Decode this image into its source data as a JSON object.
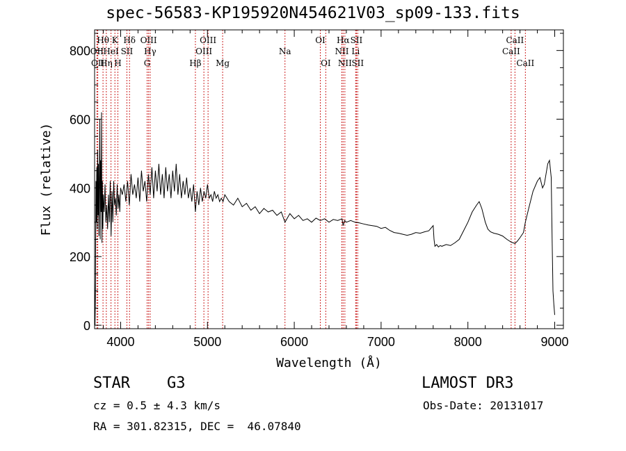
{
  "chart_data": {
    "type": "line",
    "title": "spec-56583-KP195920N454621V03_sp09-133.fits",
    "xlabel": "Wavelength (Å)",
    "ylabel": "Flux (relative)",
    "xlim": [
      3700,
      9100
    ],
    "ylim": [
      -10,
      860
    ],
    "xticks": [
      4000,
      5000,
      6000,
      7000,
      8000,
      9000
    ],
    "yticks": [
      0,
      200,
      400,
      600,
      800
    ],
    "series": [
      {
        "name": "spectrum",
        "x": [
          3700,
          3705,
          3710,
          3715,
          3720,
          3725,
          3730,
          3735,
          3740,
          3745,
          3750,
          3755,
          3760,
          3765,
          3770,
          3775,
          3780,
          3785,
          3790,
          3795,
          3800,
          3810,
          3820,
          3830,
          3840,
          3850,
          3860,
          3870,
          3880,
          3890,
          3900,
          3910,
          3920,
          3930,
          3940,
          3950,
          3960,
          3970,
          3980,
          3990,
          4000,
          4020,
          4040,
          4060,
          4080,
          4100,
          4120,
          4140,
          4160,
          4180,
          4200,
          4220,
          4240,
          4260,
          4280,
          4300,
          4320,
          4340,
          4360,
          4380,
          4400,
          4420,
          4440,
          4460,
          4480,
          4500,
          4520,
          4540,
          4560,
          4580,
          4600,
          4620,
          4640,
          4660,
          4680,
          4700,
          4720,
          4740,
          4760,
          4780,
          4800,
          4820,
          4840,
          4861,
          4880,
          4900,
          4920,
          4940,
          4960,
          4980,
          5000,
          5020,
          5040,
          5060,
          5080,
          5100,
          5120,
          5140,
          5160,
          5180,
          5200,
          5250,
          5300,
          5350,
          5400,
          5450,
          5500,
          5550,
          5600,
          5650,
          5700,
          5750,
          5800,
          5850,
          5893,
          5950,
          6000,
          6050,
          6100,
          6150,
          6200,
          6250,
          6300,
          6350,
          6400,
          6450,
          6500,
          6550,
          6563,
          6580,
          6600,
          6650,
          6700,
          6750,
          6800,
          6850,
          6900,
          6950,
          7000,
          7050,
          7100,
          7150,
          7200,
          7250,
          7300,
          7350,
          7400,
          7450,
          7500,
          7550,
          7600,
          7610,
          7620,
          7640,
          7660,
          7680,
          7700,
          7750,
          7800,
          7850,
          7900,
          7950,
          8000,
          8050,
          8100,
          8130,
          8160,
          8180,
          8200,
          8230,
          8260,
          8300,
          8350,
          8400,
          8450,
          8498,
          8520,
          8542,
          8570,
          8600,
          8640,
          8662,
          8700,
          8750,
          8800,
          8830,
          8860,
          8880,
          8900,
          8920,
          8940,
          8960,
          8970,
          8980,
          8990,
          9000
        ],
        "y": [
          130,
          0,
          80,
          420,
          300,
          460,
          280,
          510,
          320,
          470,
          260,
          440,
          600,
          250,
          480,
          330,
          620,
          240,
          420,
          280,
          380,
          330,
          410,
          300,
          350,
          280,
          380,
          300,
          420,
          260,
          390,
          300,
          420,
          350,
          370,
          320,
          410,
          340,
          380,
          330,
          400,
          380,
          410,
          360,
          420,
          350,
          440,
          380,
          410,
          370,
          430,
          360,
          450,
          390,
          420,
          360,
          440,
          380,
          460,
          370,
          450,
          390,
          470,
          380,
          440,
          370,
          460,
          390,
          440,
          370,
          450,
          390,
          470,
          380,
          440,
          370,
          420,
          380,
          430,
          370,
          400,
          360,
          410,
          330,
          390,
          350,
          400,
          360,
          390,
          370,
          410,
          370,
          380,
          360,
          390,
          370,
          380,
          360,
          370,
          360,
          380,
          360,
          350,
          370,
          345,
          355,
          335,
          345,
          325,
          340,
          330,
          335,
          320,
          330,
          300,
          325,
          310,
          320,
          305,
          310,
          300,
          312,
          305,
          310,
          300,
          308,
          305,
          310,
          290,
          305,
          300,
          305,
          300,
          298,
          295,
          292,
          290,
          288,
          282,
          285,
          276,
          270,
          268,
          265,
          262,
          265,
          270,
          268,
          272,
          275,
          290,
          250,
          230,
          235,
          228,
          232,
          230,
          235,
          232,
          240,
          250,
          275,
          300,
          330,
          350,
          360,
          340,
          320,
          300,
          280,
          272,
          268,
          265,
          260,
          250,
          242,
          240,
          238,
          245,
          255,
          270,
          300,
          340,
          390,
          420,
          430,
          400,
          410,
          440,
          470,
          480,
          430,
          250,
          100,
          60,
          30
        ]
      }
    ],
    "line_markers": [
      {
        "label": "OII",
        "wavelength": 3727,
        "row": 1
      },
      {
        "label": "OII",
        "wavelength": 3737,
        "row": 2
      },
      {
        "label": "Hθ",
        "wavelength": 3797,
        "row": 0
      },
      {
        "label": "Hη",
        "wavelength": 3835,
        "row": 2
      },
      {
        "label": "HeI",
        "wavelength": 3889,
        "row": 1
      },
      {
        "label": "K",
        "wavelength": 3934,
        "row": 0
      },
      {
        "label": "H",
        "wavelength": 3968,
        "row": 2
      },
      {
        "label": "SII",
        "wavelength": 4072,
        "row": 1
      },
      {
        "label": "Hδ",
        "wavelength": 4102,
        "row": 0
      },
      {
        "label": "G",
        "wavelength": 4305,
        "row": 2
      },
      {
        "label": "OIII",
        "wavelength": 4322,
        "row": 0
      },
      {
        "label": "Hγ",
        "wavelength": 4340,
        "row": 1
      },
      {
        "label": "Hβ",
        "wavelength": 4861,
        "row": 2
      },
      {
        "label": "OIII",
        "wavelength": 4959,
        "row": 1
      },
      {
        "label": "OIII",
        "wavelength": 5007,
        "row": 0
      },
      {
        "label": "Mg",
        "wavelength": 5175,
        "row": 2
      },
      {
        "label": "Na",
        "wavelength": 5893,
        "row": 1
      },
      {
        "label": "OI",
        "wavelength": 6300,
        "row": 0
      },
      {
        "label": "OI",
        "wavelength": 6363,
        "row": 2
      },
      {
        "label": "NII",
        "wavelength": 6548,
        "row": 1
      },
      {
        "label": "Hα",
        "wavelength": 6563,
        "row": 0
      },
      {
        "label": "NII",
        "wavelength": 6583,
        "row": 2
      },
      {
        "label": "SII",
        "wavelength": 6716,
        "row": 0
      },
      {
        "label": "Li",
        "wavelength": 6707,
        "row": 1
      },
      {
        "label": "SII",
        "wavelength": 6731,
        "row": 2
      },
      {
        "label": "CaII",
        "wavelength": 8498,
        "row": 1
      },
      {
        "label": "CaII",
        "wavelength": 8542,
        "row": 0
      },
      {
        "label": "CaII",
        "wavelength": 8662,
        "row": 2
      }
    ]
  },
  "info": {
    "object_class": "STAR",
    "subclass": "G3",
    "survey": "LAMOST DR3",
    "redshift": "cz = 0.5 ± 4.3 km/s",
    "obs_date": "Obs-Date: 20131017",
    "coords": "RA = 301.82315, DEC =  46.07840"
  },
  "colors": {
    "spectrum": "#000000",
    "marker_line": "#cc2222",
    "axis": "#000000"
  }
}
